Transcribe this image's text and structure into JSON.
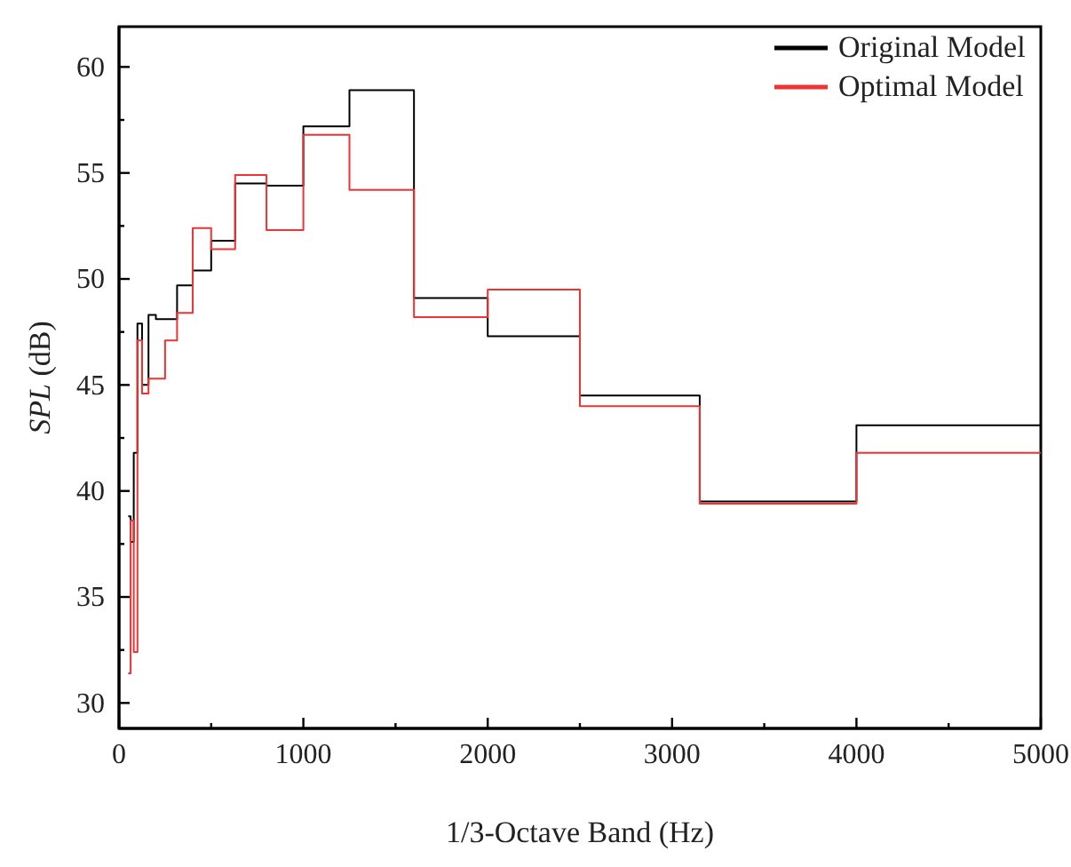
{
  "chart_data": {
    "type": "step",
    "xlabel": "1/3-Octave Band (Hz)",
    "ylabel": "SPL (dB)",
    "xlim": [
      0,
      5000
    ],
    "ylim": [
      28.8,
      61.9
    ],
    "xticks": [
      0,
      {
        "value": 500,
        "label": null
      },
      1000,
      {
        "value": 1500,
        "label": null
      },
      2000,
      {
        "value": 2500,
        "label": null
      },
      3000,
      {
        "value": 3500,
        "label": null
      },
      4000,
      {
        "value": 4500,
        "label": null
      },
      5000
    ],
    "yticks": [
      30,
      {
        "value": 32.5,
        "label": null
      },
      35,
      {
        "value": 37.5,
        "label": null
      },
      40,
      {
        "value": 42.5,
        "label": null
      },
      45,
      {
        "value": 47.5,
        "label": null
      },
      50,
      {
        "value": 52.5,
        "label": null
      },
      55,
      {
        "value": 57.5,
        "label": null
      },
      60
    ],
    "grid": false,
    "legend": "top right",
    "line_style": "solid",
    "marker": "none",
    "series": [
      {
        "name": "Original Model",
        "color": "#000000",
        "x": [
          50,
          63,
          80,
          100,
          125,
          160,
          200,
          250,
          315,
          400,
          500,
          630,
          800,
          1000,
          1250,
          1600,
          2000,
          2500,
          3150,
          4000,
          5000
        ],
        "values": [
          38.8,
          37.6,
          41.8,
          47.9,
          45.0,
          48.3,
          48.1,
          48.1,
          49.7,
          50.4,
          51.8,
          54.5,
          54.4,
          57.2,
          58.9,
          49.1,
          47.3,
          44.5,
          39.5,
          43.1,
          43.1
        ]
      },
      {
        "name": "Optimal Model",
        "color": "#ee3333",
        "x": [
          50,
          63,
          80,
          100,
          125,
          160,
          200,
          250,
          315,
          400,
          500,
          630,
          800,
          1000,
          1250,
          1600,
          2000,
          2500,
          3150,
          4000,
          5000
        ],
        "values": [
          31.4,
          38.6,
          32.4,
          47.1,
          44.6,
          45.3,
          45.3,
          47.1,
          48.4,
          52.4,
          51.4,
          54.9,
          52.3,
          56.8,
          54.2,
          48.2,
          49.5,
          44.0,
          39.4,
          41.8,
          41.8
        ]
      }
    ]
  }
}
